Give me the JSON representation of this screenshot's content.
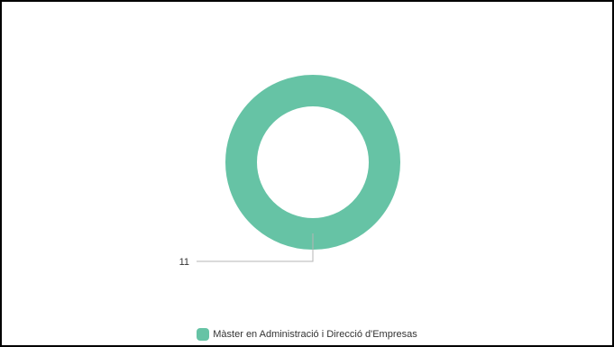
{
  "chart_data": {
    "type": "pie",
    "variant": "donut",
    "categories": [
      "Màster en Administració i Direcció d'Empresas"
    ],
    "values": [
      11
    ],
    "data_labels": [
      "11"
    ],
    "colors": [
      "#66c3a5"
    ],
    "legend": {
      "position": "bottom",
      "entries": [
        "Màster en Administració i Direcció d'Empresas"
      ]
    }
  }
}
